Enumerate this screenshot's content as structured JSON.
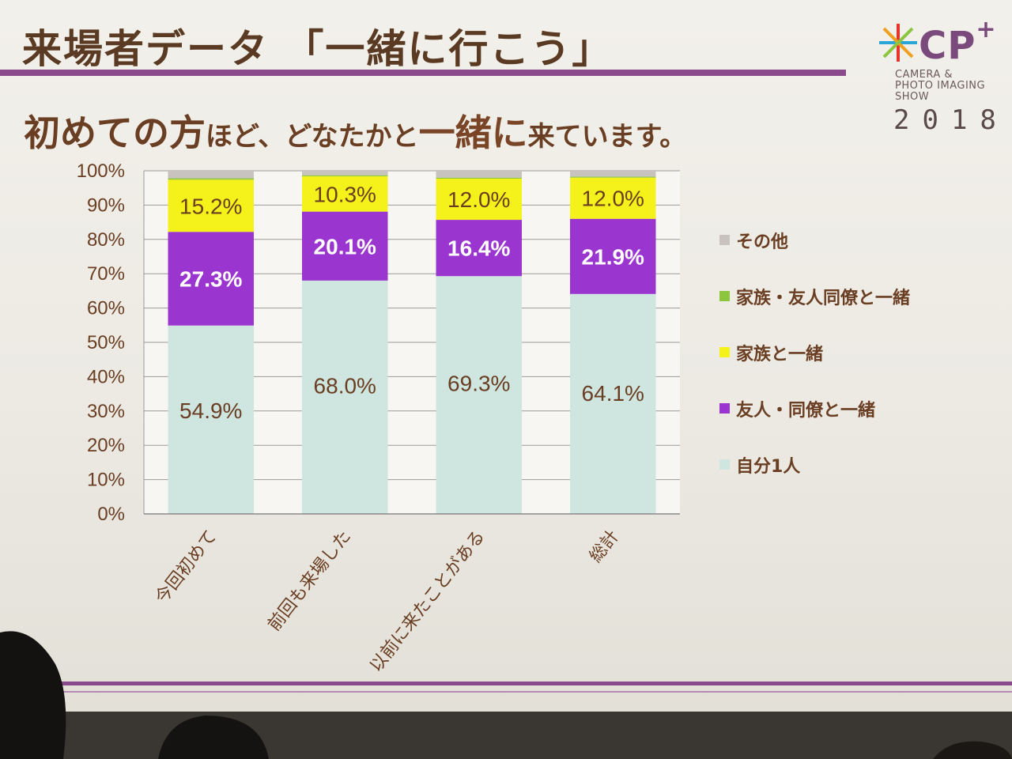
{
  "slide": {
    "title": "来場者データ 「一緒に行こう」",
    "subtitle_parts": [
      "初めての方",
      "ほど、どなたかと",
      "一緒に",
      "来ています。"
    ]
  },
  "logo": {
    "word": "CP",
    "sup": "+",
    "sub_lines": [
      "CAMERA &",
      "PHOTO IMAGING",
      "SHOW"
    ],
    "year": "2018"
  },
  "colors": {
    "alone": "#cfe5df",
    "friend": "#9b35cf",
    "family": "#f4f21a",
    "family_friend": "#8cc63f",
    "other": "#c9c3c0",
    "text": "#6a3e22"
  },
  "chart_data": {
    "type": "bar",
    "stacked": true,
    "percent": true,
    "categories": [
      "今回初めて",
      "前回も来場した",
      "以前に来たことがある",
      "総計"
    ],
    "series": [
      {
        "name": "自分1人",
        "key": "alone",
        "values": [
          54.9,
          68.0,
          69.3,
          64.1
        ],
        "labels": [
          "54.9%",
          "68.0%",
          "69.3%",
          "64.1%"
        ]
      },
      {
        "name": "友人・同僚と一緒",
        "key": "friend",
        "values": [
          27.3,
          20.1,
          16.4,
          21.9
        ],
        "labels": [
          "27.3%",
          "20.1%",
          "16.4%",
          "21.9%"
        ]
      },
      {
        "name": "家族と一緒",
        "key": "family",
        "values": [
          15.2,
          10.3,
          12.0,
          12.0
        ],
        "labels": [
          "15.2%",
          "10.3%",
          "12.0%",
          "12.0%"
        ]
      },
      {
        "name": "家族・友人同僚と一緒",
        "key": "family_friend",
        "values": [
          0.4,
          0.3,
          0.3,
          0.3
        ],
        "labels": [
          "",
          "",
          "",
          ""
        ]
      },
      {
        "name": "その他",
        "key": "other",
        "values": [
          2.2,
          1.3,
          2.0,
          1.7
        ],
        "labels": [
          "",
          "",
          "",
          ""
        ]
      }
    ],
    "yticks": [
      "0%",
      "10%",
      "20%",
      "30%",
      "40%",
      "50%",
      "60%",
      "70%",
      "80%",
      "90%",
      "100%"
    ],
    "ylim": [
      0,
      100
    ],
    "grid": true,
    "legend_position": "right",
    "legend_order": [
      "その他",
      "家族・友人同僚と一緒",
      "家族と一緒",
      "友人・同僚と一緒",
      "自分1人"
    ]
  }
}
